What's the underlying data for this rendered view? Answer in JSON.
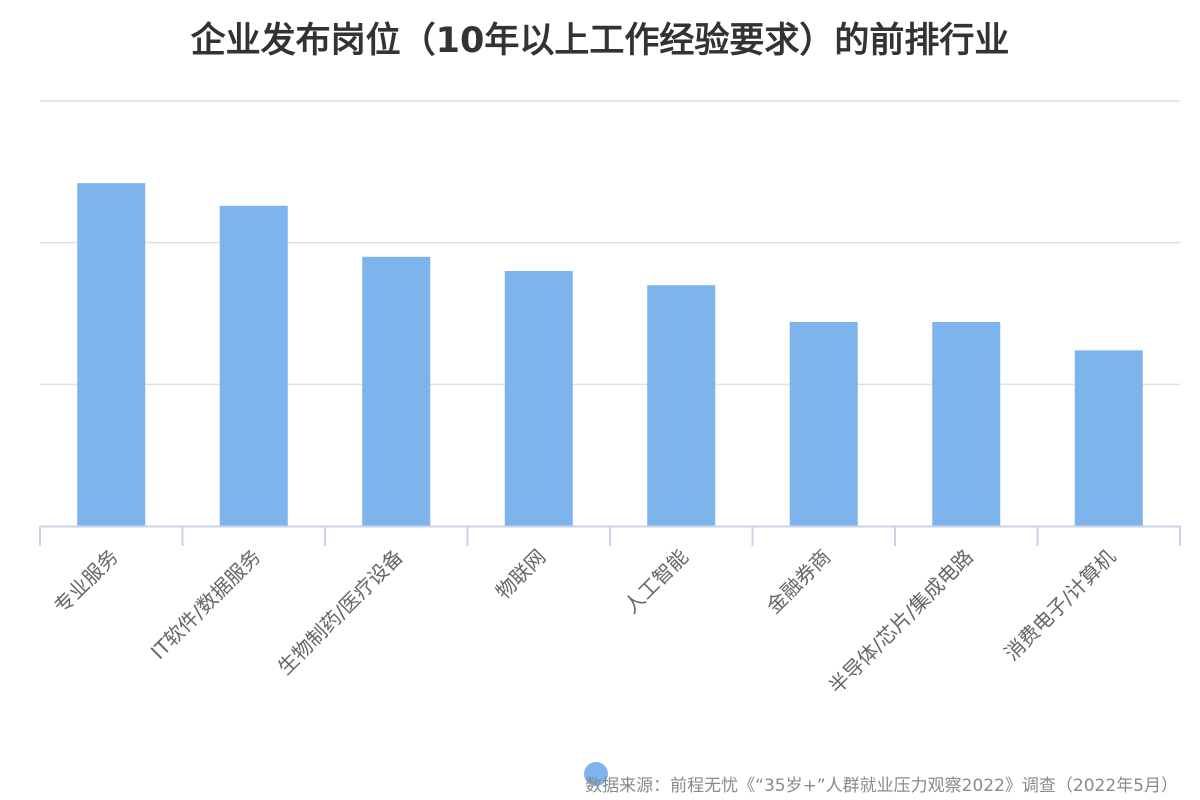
{
  "chart_data": {
    "type": "bar",
    "title": "企业发布岗位（10年以上工作经验要求）的前排行业",
    "xlabel": "",
    "ylabel": "",
    "categories": [
      "专业服务",
      "IT软件/数据服务",
      "生物制药/医疗设备",
      "物联网",
      "人工智能",
      "金融券商",
      "半导体/芯片/集成电路",
      "消费电子/计算机"
    ],
    "values": [
      2.42,
      2.26,
      1.9,
      1.8,
      1.7,
      1.44,
      1.44,
      1.24
    ],
    "ylim": [
      0,
      3
    ],
    "grid": true,
    "y_tick_labels_shown": false,
    "x_tick_label_rotation": -45,
    "bar_color": "#7cb4eb",
    "legend_color": "#7cb4eb"
  },
  "source": "数据来源：前程无忧《“35岁+”人群就业压力观察2022》调查（2022年5月）"
}
